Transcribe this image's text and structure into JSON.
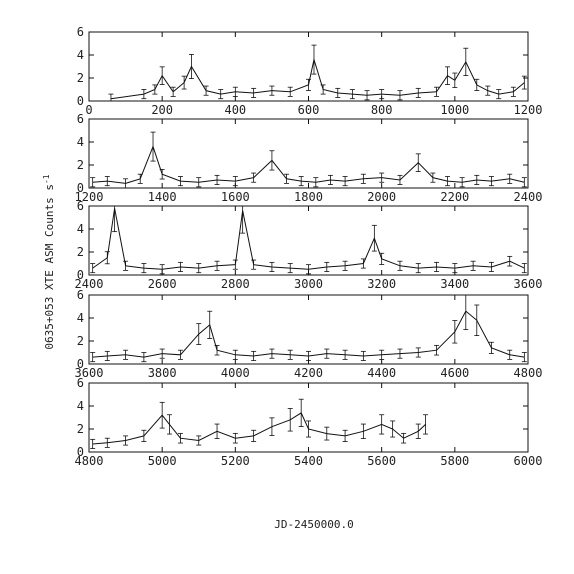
{
  "chart_data": [
    {
      "type": "line",
      "xlim": [
        0,
        1200
      ],
      "ylim": [
        0,
        6
      ],
      "x_ticks": [
        "0",
        "200",
        "400",
        "600",
        "800",
        "1000",
        "1200"
      ],
      "y_ticks": [
        "0",
        "2",
        "4",
        "6"
      ],
      "error_bars": true,
      "series": [
        {
          "x": [
            60,
            150,
            180,
            200,
            230,
            260,
            280,
            320,
            360,
            400,
            450,
            500,
            550,
            600,
            615,
            640,
            680,
            720,
            760,
            800,
            850,
            900,
            950,
            980,
            1000,
            1030,
            1060,
            1090,
            1120,
            1160,
            1190
          ],
          "y": [
            0.2,
            0.6,
            1.0,
            2.2,
            0.8,
            1.6,
            3.0,
            0.9,
            0.6,
            0.8,
            0.7,
            0.9,
            0.8,
            1.4,
            3.6,
            1.0,
            0.7,
            0.6,
            0.5,
            0.6,
            0.5,
            0.7,
            0.8,
            2.2,
            1.8,
            3.4,
            1.4,
            0.9,
            0.6,
            0.8,
            1.6
          ]
        }
      ]
    },
    {
      "type": "line",
      "xlim": [
        1200,
        2400
      ],
      "ylim": [
        0,
        6
      ],
      "x_ticks": [
        "1200",
        "1400",
        "1600",
        "1800",
        "2000",
        "2200",
        "2400"
      ],
      "y_ticks": [
        "0",
        "2",
        "4",
        "6"
      ],
      "error_bars": true,
      "series": [
        {
          "x": [
            1210,
            1250,
            1300,
            1340,
            1375,
            1400,
            1450,
            1500,
            1550,
            1600,
            1650,
            1700,
            1740,
            1780,
            1820,
            1860,
            1900,
            1950,
            2000,
            2050,
            2100,
            2140,
            2180,
            2220,
            2260,
            2300,
            2350,
            2390
          ],
          "y": [
            0.5,
            0.6,
            0.4,
            0.8,
            3.6,
            1.2,
            0.6,
            0.5,
            0.7,
            0.6,
            0.9,
            2.4,
            0.8,
            0.6,
            0.5,
            0.7,
            0.6,
            0.8,
            0.9,
            0.7,
            2.2,
            0.9,
            0.6,
            0.5,
            0.7,
            0.6,
            0.8,
            0.5
          ]
        }
      ]
    },
    {
      "type": "line",
      "xlim": [
        2400,
        3600
      ],
      "ylim": [
        0,
        6
      ],
      "x_ticks": [
        "2400",
        "2600",
        "2800",
        "3000",
        "3200",
        "3400",
        "3600"
      ],
      "y_ticks": [
        "0",
        "2",
        "4",
        "6"
      ],
      "error_bars": true,
      "series": [
        {
          "x": [
            2410,
            2450,
            2470,
            2500,
            2550,
            2600,
            2650,
            2700,
            2750,
            2800,
            2820,
            2850,
            2900,
            2950,
            3000,
            3050,
            3100,
            3150,
            3180,
            3200,
            3250,
            3300,
            3350,
            3400,
            3450,
            3500,
            3550,
            3590
          ],
          "y": [
            0.6,
            1.5,
            5.8,
            0.8,
            0.6,
            0.5,
            0.7,
            0.6,
            0.8,
            0.9,
            5.6,
            0.9,
            0.7,
            0.6,
            0.5,
            0.7,
            0.8,
            1.0,
            3.2,
            1.4,
            0.8,
            0.6,
            0.7,
            0.6,
            0.8,
            0.7,
            1.2,
            0.6
          ]
        }
      ]
    },
    {
      "type": "line",
      "xlim": [
        3600,
        4800
      ],
      "ylim": [
        0,
        6
      ],
      "x_ticks": [
        "3600",
        "3800",
        "4000",
        "4200",
        "4400",
        "4600",
        "4800"
      ],
      "y_ticks": [
        "0",
        "2",
        "4",
        "6"
      ],
      "error_bars": true,
      "series": [
        {
          "x": [
            3610,
            3650,
            3700,
            3750,
            3800,
            3850,
            3900,
            3930,
            3950,
            4000,
            4050,
            4100,
            4150,
            4200,
            4250,
            4300,
            4350,
            4400,
            4450,
            4500,
            4550,
            4600,
            4630,
            4660,
            4700,
            4750,
            4790
          ],
          "y": [
            0.6,
            0.7,
            0.8,
            0.6,
            0.9,
            0.8,
            2.6,
            3.4,
            1.2,
            0.8,
            0.7,
            0.9,
            0.8,
            0.7,
            0.9,
            0.8,
            0.7,
            0.8,
            0.9,
            1.0,
            1.2,
            2.8,
            4.6,
            3.8,
            1.4,
            0.8,
            0.6
          ]
        }
      ]
    },
    {
      "type": "line",
      "xlim": [
        4800,
        6000
      ],
      "ylim": [
        0,
        6
      ],
      "x_ticks": [
        "4800",
        "5000",
        "5200",
        "5400",
        "5600",
        "5800",
        "6000"
      ],
      "y_ticks": [
        "0",
        "2",
        "4",
        "6"
      ],
      "error_bars": true,
      "series": [
        {
          "x": [
            4810,
            4850,
            4900,
            4950,
            5000,
            5020,
            5050,
            5100,
            5150,
            5200,
            5250,
            5300,
            5350,
            5380,
            5400,
            5450,
            5500,
            5550,
            5600,
            5630,
            5660,
            5700,
            5720
          ],
          "y": [
            0.7,
            0.8,
            1.0,
            1.4,
            3.2,
            2.4,
            1.2,
            1.0,
            1.8,
            1.2,
            1.4,
            2.2,
            2.8,
            3.4,
            2.0,
            1.6,
            1.4,
            1.8,
            2.4,
            2.0,
            1.2,
            1.8,
            2.4
          ]
        }
      ]
    }
  ],
  "ylabel": "0635+053   XTE ASM Counts s",
  "ylabel_superscript": "-1",
  "xlabel": "JD-2450000.0"
}
